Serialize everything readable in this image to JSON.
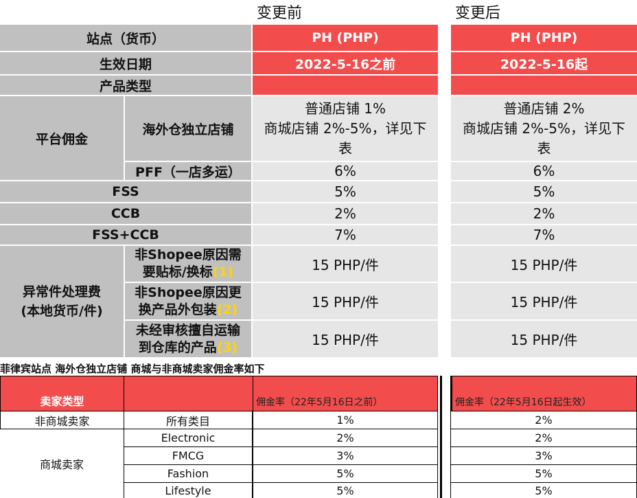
{
  "header": {
    "before": "变更前",
    "after": "变更后"
  },
  "rows": {
    "site": {
      "label": "站点（货币）",
      "before": "PH (PHP)",
      "after": "PH (PHP)"
    },
    "date": {
      "label": "生效日期",
      "before": "2022-5-16之前",
      "after": "2022-5-16起"
    },
    "ptype": {
      "label": "产品类型",
      "before": "",
      "after": ""
    },
    "commission": {
      "label": "平台佣金",
      "overseas": {
        "label": "海外仓独立店铺",
        "before_l1": "普通店铺 1%",
        "before_l2": "商城店铺 2%-5%，详见下",
        "before_l3": "表",
        "after_l1": "普通店铺 2%",
        "after_l2": "商城店铺 2%-5%，详见下",
        "after_l3": "表"
      },
      "pff": {
        "label": "PFF（一店多运）",
        "before": "6%",
        "after": "6%"
      }
    },
    "fss": {
      "label": "FSS",
      "before": "5%",
      "after": "5%"
    },
    "ccb": {
      "label": "CCB",
      "before": "2%",
      "after": "2%"
    },
    "fssccb": {
      "label": "FSS+CCB",
      "before": "7%",
      "after": "7%"
    },
    "exception": {
      "label_l1": "异常件处理费",
      "label_l2": "(本地货币/件)",
      "items": [
        {
          "l1": "非Shopee原因需",
          "l2": "要贴标/换标",
          "num": "(1)",
          "before": "15 PHP/件",
          "after": "15 PHP/件"
        },
        {
          "l1": "非Shopee原因更",
          "l2": "换产品外包装",
          "num": "(2)",
          "before": "15 PHP/件",
          "after": "15 PHP/件"
        },
        {
          "l1": "未经审核擅自运输",
          "l2": "到仓库的产品",
          "num": "(3)",
          "before": "15 PHP/件",
          "after": "15 PHP/件"
        }
      ]
    }
  },
  "table2": {
    "caption": "菲律宾站点 海外仓独立店铺 商城与非商城卖家佣金率如下",
    "head": {
      "seller_type": "卖家类型",
      "category": "",
      "before": "佣金率（22年5月16日之前）",
      "after": "佣金率（22年5月16日起生效）"
    },
    "non_mall": {
      "label": "非商城卖家",
      "category": "所有类目",
      "before": "1%",
      "after": "2%"
    },
    "mall": {
      "label": "商城卖家",
      "rows": [
        {
          "category": "Electronic",
          "before": "2%",
          "after": "2%"
        },
        {
          "category": "FMCG",
          "before": "3%",
          "after": "3%"
        },
        {
          "category": "Fashion",
          "before": "5%",
          "after": "5%"
        },
        {
          "category": "Lifestyle",
          "before": "5%",
          "after": "5%"
        }
      ]
    }
  },
  "colors": {
    "red": "#f34c4c",
    "gray": "#c0c0c0",
    "light": "#e6e6e6",
    "yellow": "#ffd400"
  }
}
